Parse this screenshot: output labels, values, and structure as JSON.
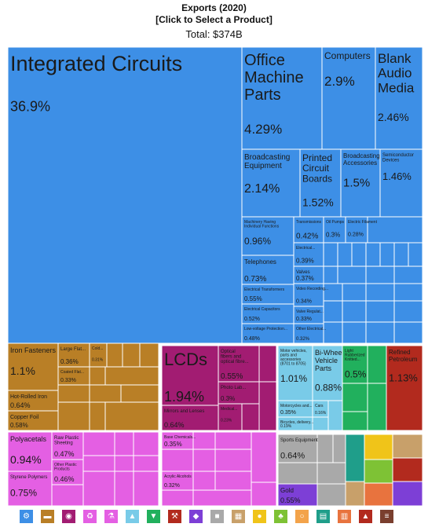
{
  "header": {
    "title": "Exports (2020)",
    "subtitle": "[Click to Select a Product]",
    "total": "Total: $374B"
  },
  "chart_data": {
    "type": "treemap",
    "total": "$374B",
    "items": [
      {
        "name": "Integrated Circuits",
        "value": "36.9%",
        "color": "#3d8fe6"
      },
      {
        "name": "Office Machine Parts",
        "value": "4.29%",
        "color": "#3d8fe6"
      },
      {
        "name": "Computers",
        "value": "2.9%",
        "color": "#3d8fe6"
      },
      {
        "name": "Blank Audio Media",
        "value": "2.46%",
        "color": "#3d8fe6"
      },
      {
        "name": "Broadcasting Equipment",
        "value": "2.14%",
        "color": "#3d8fe6"
      },
      {
        "name": "Printed Circuit Boards",
        "value": "1.52%",
        "color": "#3d8fe6"
      },
      {
        "name": "Broadcasting Accessories",
        "value": "1.5%",
        "color": "#3d8fe6"
      },
      {
        "name": "Semiconductor Devices",
        "value": "1.46%",
        "color": "#3d8fe6"
      },
      {
        "name": "Machinery Having Individual Functions",
        "value": "0.96%",
        "color": "#3d8fe6"
      },
      {
        "name": "Transmissions",
        "value": "0.42%",
        "color": "#3d8fe6"
      },
      {
        "name": "Oil Pumps",
        "value": "0.3%",
        "color": "#3d8fe6"
      },
      {
        "name": "Electric Filament",
        "value": "0.28%",
        "color": "#3d8fe6"
      },
      {
        "name": "Electrical Control Boards",
        "value": "0.39%",
        "color": "#3d8fe6"
      },
      {
        "name": "Telephones",
        "value": "0.73%",
        "color": "#3d8fe6"
      },
      {
        "name": "Valves",
        "value": "0.37%",
        "color": "#3d8fe6"
      },
      {
        "name": "Electrical Transformers",
        "value": "0.55%",
        "color": "#3d8fe6"
      },
      {
        "name": "Video Recording Equipment",
        "value": "0.34%",
        "color": "#3d8fe6"
      },
      {
        "name": "Electrical Capacitors",
        "value": "0.52%",
        "color": "#3d8fe6"
      },
      {
        "name": "Valve Regulator",
        "value": "0.33%",
        "color": "#3d8fe6"
      },
      {
        "name": "Low-voltage Protection Equipment",
        "value": "0.48%",
        "color": "#3d8fe6"
      },
      {
        "name": "Other Electrical Machinery",
        "value": "0.32%",
        "color": "#3d8fe6"
      },
      {
        "name": "Iron Fasteners",
        "value": "1.1%",
        "color": "#b97f26"
      },
      {
        "name": "Large Flat-Rolled Iron",
        "value": "0.36%",
        "color": "#b97f26"
      },
      {
        "name": "Cold-Rolled Iron",
        "value": "0.31%",
        "color": "#b97f26"
      },
      {
        "name": "Coated Flat-Rolled Iron",
        "value": "0.33%",
        "color": "#b97f26"
      },
      {
        "name": "Hot-Rolled Iron",
        "value": "0.64%",
        "color": "#b97f26"
      },
      {
        "name": "Copper Foil",
        "value": "0.58%",
        "color": "#b97f26"
      },
      {
        "name": "LCDs",
        "value": "1.94%",
        "color": "#a21c72"
      },
      {
        "name": "Optical Fibers and optical fibre bundles",
        "value": "0.55%",
        "color": "#a21c72"
      },
      {
        "name": "Photo Lab Equipment",
        "value": "0.3%",
        "color": "#a21c72"
      },
      {
        "name": "Mirrors and Lenses",
        "value": "0.64%",
        "color": "#a21c72"
      },
      {
        "name": "Medical Instruments",
        "value": "0.23%",
        "color": "#a21c72"
      },
      {
        "name": "Motor vehicles; parts and accessories (8701 to 8705)",
        "value": "1.01%",
        "color": "#79cbe8"
      },
      {
        "name": "Bi-Wheel Vehicle Parts",
        "value": "0.88%",
        "color": "#79cbe8"
      },
      {
        "name": "Motorcycles and cycles",
        "value": "0.35%",
        "color": "#79cbe8"
      },
      {
        "name": "Cars",
        "value": "0.16%",
        "color": "#79cbe8"
      },
      {
        "name": "Bicycles, delivery tricycles",
        "value": "0.19%",
        "color": "#79cbe8"
      },
      {
        "name": "Light Rubberized Knitted Fabric",
        "value": "0.5%",
        "color": "#21b05d"
      },
      {
        "name": "Refined Petroleum",
        "value": "1.13%",
        "color": "#b22a1e"
      },
      {
        "name": "Polyacetals",
        "value": "0.94%",
        "color": "#e45fe3"
      },
      {
        "name": "Raw Plastic Sheeting",
        "value": "0.47%",
        "color": "#e45fe3"
      },
      {
        "name": "Other Plastic Products",
        "value": "0.46%",
        "color": "#e45fe3"
      },
      {
        "name": "Styrene Polymers",
        "value": "0.75%",
        "color": "#e45fe3"
      },
      {
        "name": "Base Chemicals",
        "value": "0.35%",
        "color": "#e45fe3"
      },
      {
        "name": "Acrylic Alcohols",
        "value": "0.32%",
        "color": "#e45fe3"
      },
      {
        "name": "Sports Equipment",
        "value": "0.64%",
        "color": "#a9a9a9"
      },
      {
        "name": "Gold",
        "value": "0.55%",
        "color": "#7d3fd6"
      }
    ]
  },
  "categories_bar": [
    {
      "name": "machines",
      "icon": "gear-icon",
      "color": "#3d8fe6",
      "glyph": "⚙"
    },
    {
      "name": "metals",
      "icon": "anvil-icon",
      "color": "#b97f26",
      "glyph": "▬"
    },
    {
      "name": "instruments",
      "icon": "microscope-icon",
      "color": "#a21c72",
      "glyph": "◉"
    },
    {
      "name": "plastics",
      "icon": "recycle-icon",
      "color": "#e45fe3",
      "glyph": "♻"
    },
    {
      "name": "chemicals",
      "icon": "flask-icon",
      "color": "#e45fe3",
      "glyph": "⚗"
    },
    {
      "name": "transportation",
      "icon": "road-icon",
      "color": "#79cbe8",
      "glyph": "▲"
    },
    {
      "name": "textiles",
      "icon": "shirt-icon",
      "color": "#21b05d",
      "glyph": "▼"
    },
    {
      "name": "tools",
      "icon": "hammer-icon",
      "color": "#b22a1e",
      "glyph": "⚒"
    },
    {
      "name": "precious-metals",
      "icon": "gem-icon",
      "color": "#7d3fd6",
      "glyph": "◆"
    },
    {
      "name": "footwear",
      "icon": "shoe-icon",
      "color": "#a9a9a9",
      "glyph": "■"
    },
    {
      "name": "stone",
      "icon": "brick-icon",
      "color": "#c8a06a",
      "glyph": "▦"
    },
    {
      "name": "food",
      "icon": "apple-icon",
      "color": "#f0c419",
      "glyph": "●"
    },
    {
      "name": "vegetables",
      "icon": "leaf-icon",
      "color": "#7ec235",
      "glyph": "♣"
    },
    {
      "name": "animal-products",
      "icon": "egg-icon",
      "color": "#f3a34a",
      "glyph": "○"
    },
    {
      "name": "paper",
      "icon": "book-icon",
      "color": "#1f9e8a",
      "glyph": "▤"
    },
    {
      "name": "wood",
      "icon": "log-icon",
      "color": "#e8733e",
      "glyph": "▥"
    },
    {
      "name": "minerals",
      "icon": "oil-icon",
      "color": "#b22a1e",
      "glyph": "▲"
    },
    {
      "name": "misc",
      "icon": "bench-icon",
      "color": "#7a3f2e",
      "glyph": "≡"
    }
  ]
}
